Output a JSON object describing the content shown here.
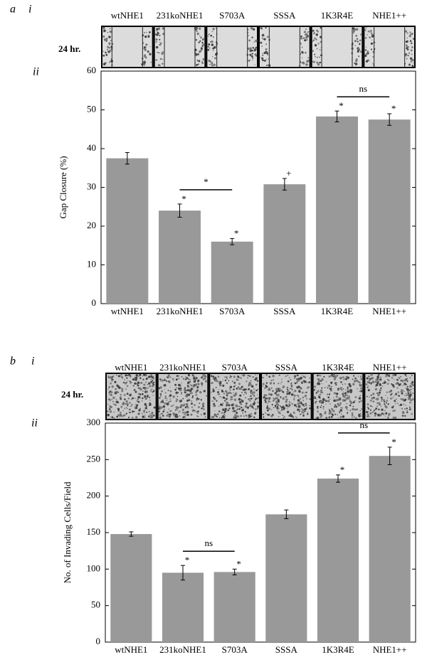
{
  "panels": [
    {
      "label": "a",
      "strip_label": "i",
      "chart_label": "ii",
      "time": "24 hr."
    },
    {
      "label": "b",
      "strip_label": "i",
      "chart_label": "ii",
      "time": "24 hr."
    }
  ],
  "chart_data": [
    {
      "type": "bar",
      "ylabel": "Gap Closure (%)",
      "categories": [
        "wtNHE1",
        "231koNHE1",
        "S703A",
        "SSSA",
        "1K3R4E",
        "NHE1++"
      ],
      "values": [
        37.5,
        24,
        16,
        30.8,
        48.3,
        47.5
      ],
      "errors": [
        1.5,
        1.7,
        0.8,
        1.5,
        1.4,
        1.5
      ],
      "value_annotations": [
        null,
        "*",
        "*",
        "+",
        "*",
        "*"
      ],
      "comparisons": [
        {
          "from": "231koNHE1",
          "to": "S703A",
          "label": "*"
        },
        {
          "from": "1K3R4E",
          "to": "NHE1++",
          "label": "ns"
        }
      ],
      "color": "#999999",
      "ylim": [
        0,
        60
      ],
      "yticks": [
        0,
        10,
        20,
        30,
        40,
        50,
        60
      ]
    },
    {
      "type": "bar",
      "ylabel": "No. of Invading Cells/Field",
      "categories": [
        "wtNHE1",
        "231koNHE1",
        "S703A",
        "SSSA",
        "1K3R4E",
        "NHE1++"
      ],
      "values": [
        148,
        95,
        96,
        175,
        224,
        255
      ],
      "errors": [
        3,
        10,
        4,
        6,
        5,
        12
      ],
      "value_annotations": [
        null,
        "*",
        "*",
        null,
        "*",
        "*"
      ],
      "comparisons": [
        {
          "from": "231koNHE1",
          "to": "S703A",
          "label": "ns"
        },
        {
          "from": "1K3R4E",
          "to": "NHE1++",
          "label": "ns"
        }
      ],
      "color": "#999999",
      "ylim": [
        0,
        300
      ],
      "yticks": [
        0,
        50,
        100,
        150,
        200,
        250,
        300
      ]
    }
  ]
}
